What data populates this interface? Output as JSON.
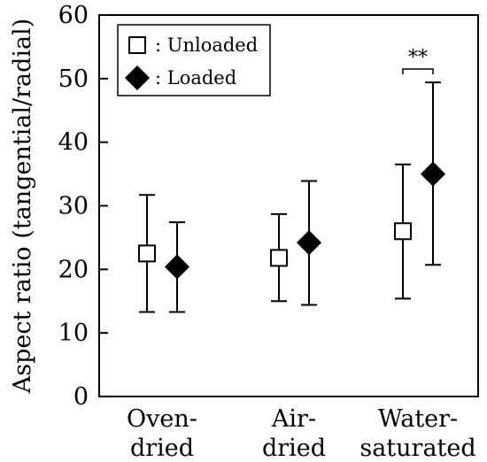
{
  "chart_data": {
    "type": "scatter",
    "categories": [
      "Oven-\ndried",
      "Air-\ndried",
      "Water-\nsaturated"
    ],
    "ylabel": "Aspect ratio (tangential/radial)",
    "xlabel": "",
    "ylim": [
      0,
      60
    ],
    "yticks": [
      0,
      10,
      20,
      30,
      40,
      50,
      60
    ],
    "grid": false,
    "legend_position": "top-left",
    "series": [
      {
        "name": ": Unloaded",
        "marker": "open-square",
        "values": [
          22.5,
          21.8,
          26.0
        ],
        "error_low": [
          13.3,
          15.0,
          15.4
        ],
        "error_high": [
          31.7,
          28.7,
          36.5
        ]
      },
      {
        "name": ": Loaded",
        "marker": "filled-diamond",
        "values": [
          20.4,
          24.2,
          35.0
        ],
        "error_low": [
          13.3,
          14.4,
          20.7
        ],
        "error_high": [
          27.4,
          33.9,
          49.4
        ]
      }
    ],
    "annotations": [
      {
        "text": "**",
        "category_index": 2,
        "between": [
          "Unloaded",
          "Loaded"
        ],
        "y": 51.5
      }
    ]
  },
  "colors": {
    "axis": "#000000",
    "loaded_fill": "#000000",
    "unloaded_fill": "#ffffff"
  }
}
